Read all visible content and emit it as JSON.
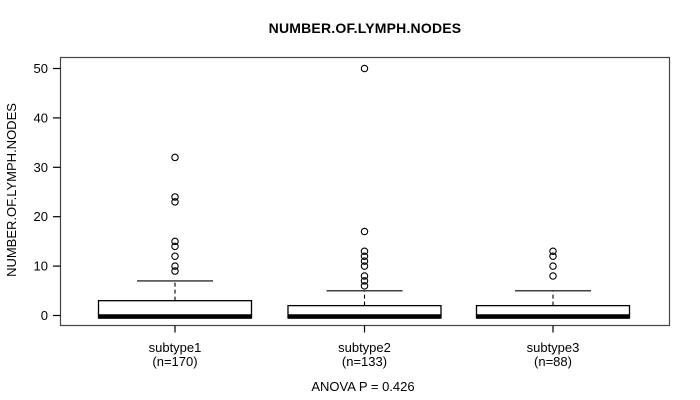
{
  "page": {
    "background": "#ffffff",
    "foreground": "#000000",
    "frame_color": "#444444"
  },
  "chart_data": {
    "type": "boxplot",
    "title": "NUMBER.OF.LYMPH.NODES",
    "ylabel": "NUMBER.OF.LYMPH.NODES",
    "xlabel": "",
    "ylim": [
      0,
      50
    ],
    "yticks": [
      0,
      10,
      20,
      30,
      40,
      50
    ],
    "grid": false,
    "legend": null,
    "annotation": "ANOVA P = 0.426",
    "groups": [
      {
        "label": "subtype1",
        "sublabel": "(n=170)",
        "n": 170,
        "whisker_low": 0,
        "q1": 0,
        "median": 0,
        "q3": 3,
        "whisker_high": 7,
        "outliers": [
          9,
          10,
          12,
          14,
          15,
          23,
          24,
          32
        ]
      },
      {
        "label": "subtype2",
        "sublabel": "(n=133)",
        "n": 133,
        "whisker_low": 0,
        "q1": 0,
        "median": 0,
        "q3": 2,
        "whisker_high": 5,
        "outliers": [
          6,
          7,
          8,
          10,
          11,
          12,
          13,
          17,
          50
        ]
      },
      {
        "label": "subtype3",
        "sublabel": "(n=88)",
        "n": 88,
        "whisker_low": 0,
        "q1": 0,
        "median": 0,
        "q3": 2,
        "whisker_high": 5,
        "outliers": [
          8,
          10,
          12,
          13
        ]
      }
    ]
  }
}
